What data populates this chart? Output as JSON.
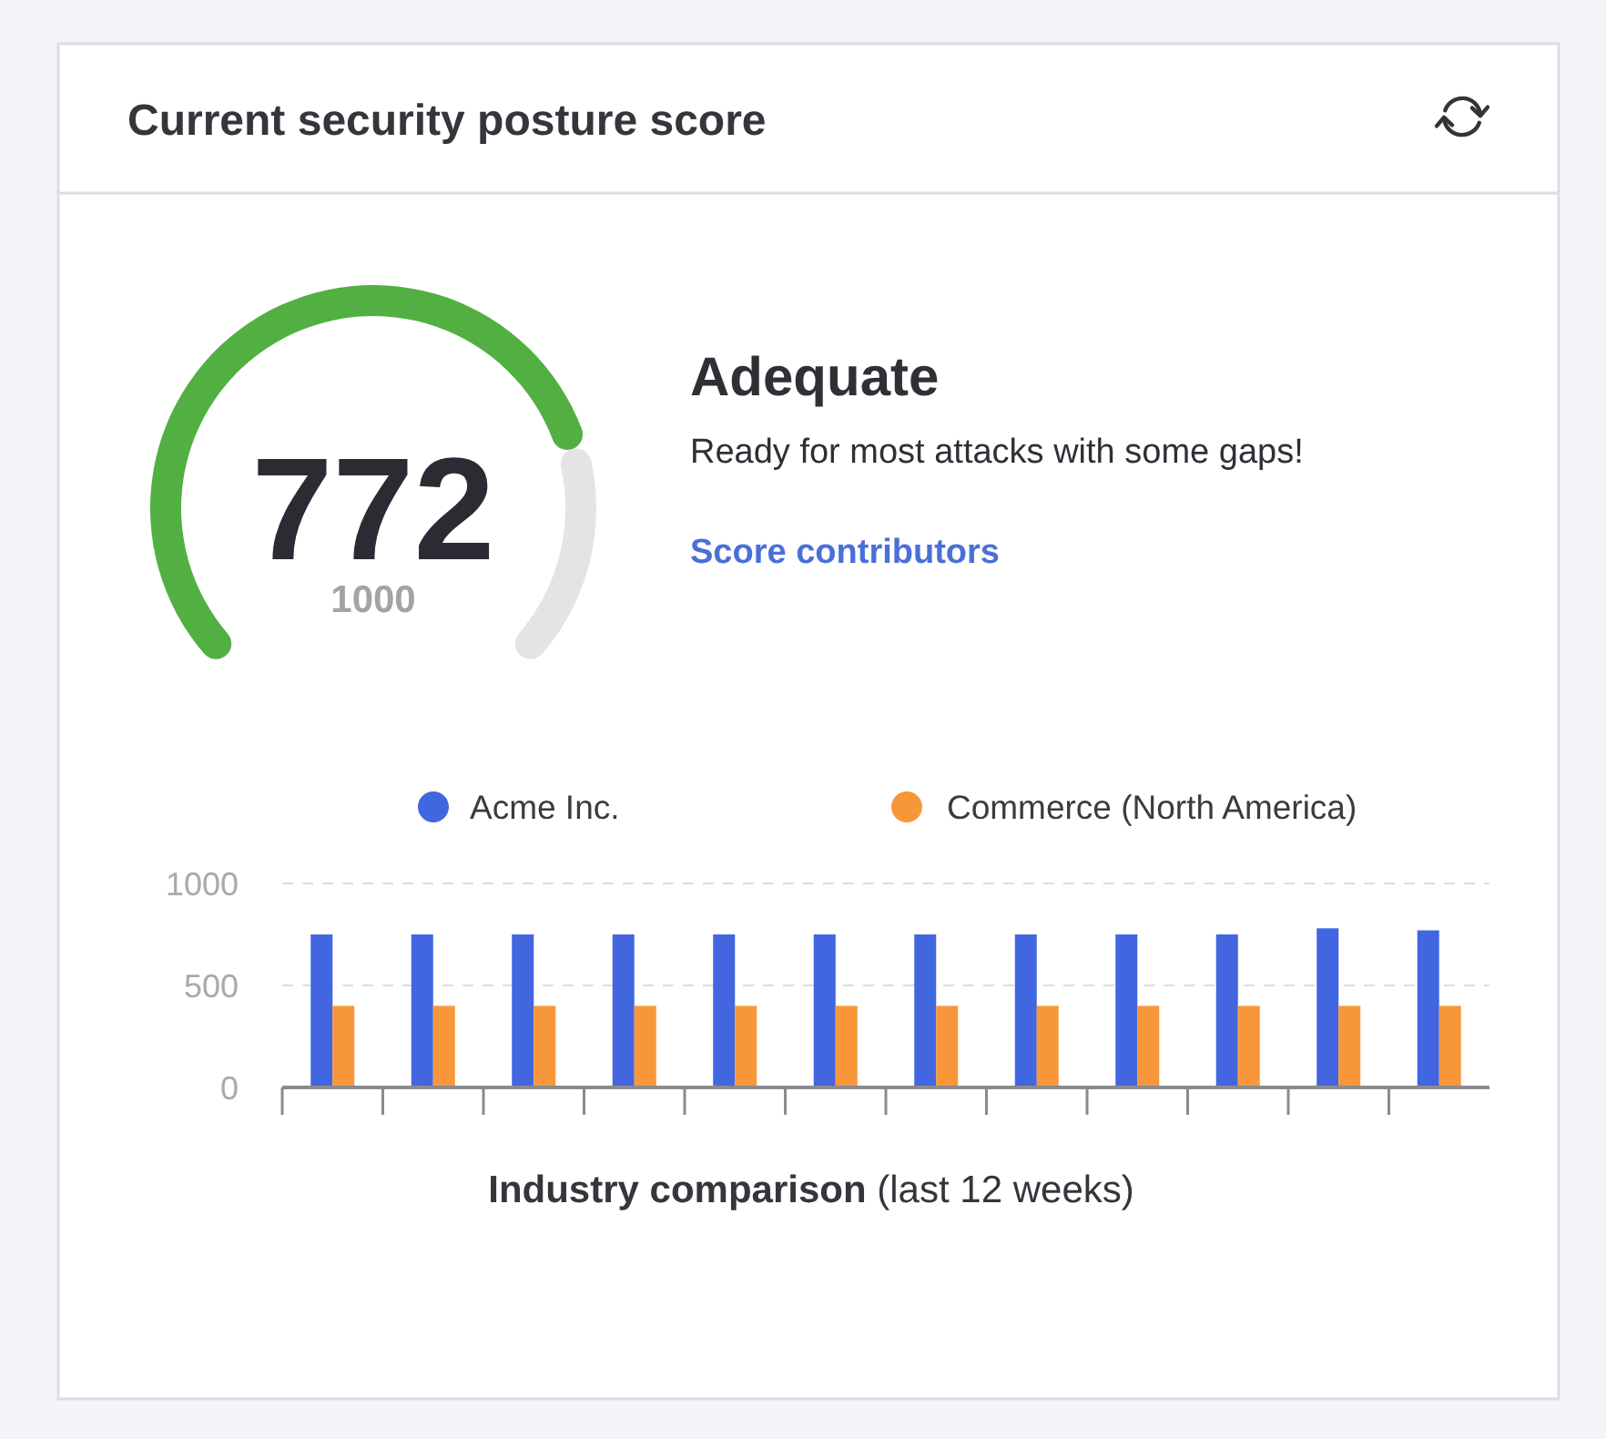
{
  "chart_data": [
    {
      "type": "donut",
      "title": "Current security posture score",
      "categories": [
        null,
        null
      ],
      "values": [
        77.2,
        22.8
      ],
      "colors": [
        "#52b043",
        "#e4e4e4"
      ],
      "annotations": [
        "772",
        "1000",
        "Adequate",
        "Ready for most attacks with some gaps!",
        "Score contributors"
      ]
    },
    {
      "type": "bar",
      "categories": [
        null,
        null,
        null,
        null,
        null,
        null,
        null,
        null,
        null,
        null,
        null,
        null
      ],
      "series": [
        {
          "name": "Acme Inc.",
          "color": "#4166e0",
          "values": [
            750,
            750,
            750,
            750,
            750,
            750,
            750,
            750,
            750,
            750,
            780,
            770
          ]
        },
        {
          "name": "Commerce (North America)",
          "color": "#f8973a",
          "values": [
            400,
            400,
            400,
            400,
            400,
            400,
            400,
            400,
            400,
            400,
            400,
            400
          ]
        }
      ],
      "ylim": [
        0,
        1000
      ],
      "yticks": [
        0,
        500,
        1000
      ],
      "grid": "y",
      "legend": "top",
      "xlabel": "Industry comparison (last 12 weeks)"
    }
  ]
}
